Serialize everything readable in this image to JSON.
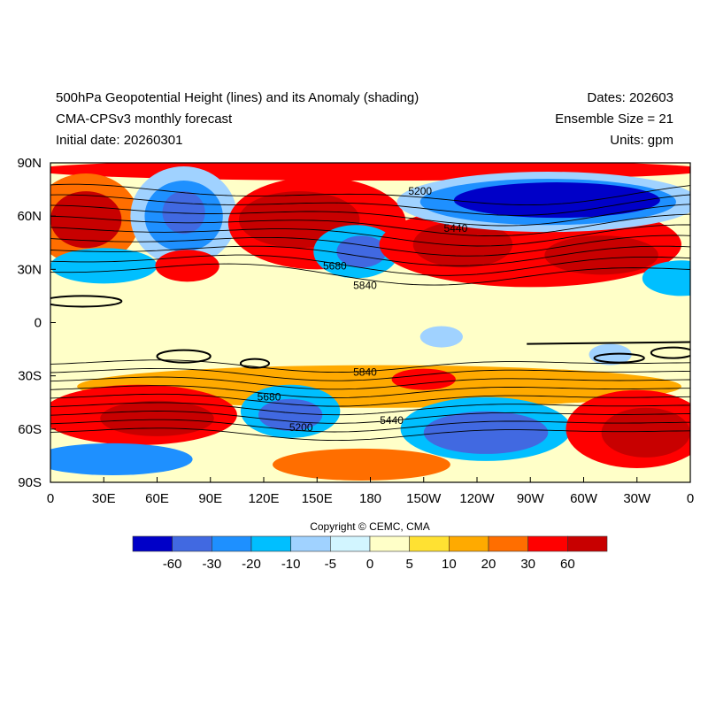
{
  "header": {
    "title_left": [
      "500hPa Geopotential Height (lines) and its Anomaly (shading)",
      "CMA-CPSv3 monthly forecast",
      "Initial date: 20260301"
    ],
    "title_right": [
      "Dates: 202603",
      "Ensemble Size = 21",
      "Units: gpm"
    ]
  },
  "copyright": "Copyright © CEMC, CMA",
  "chart_data": {
    "type": "heatmap",
    "title": "500hPa Geopotential Height (lines) and its Anomaly (shading)",
    "x_tick_labels": [
      "0",
      "30E",
      "60E",
      "90E",
      "120E",
      "150E",
      "180",
      "150W",
      "120W",
      "90W",
      "60W",
      "30W",
      "0"
    ],
    "y_tick_labels": [
      "90N",
      "60N",
      "30N",
      "0",
      "30S",
      "60S",
      "90S"
    ],
    "xlim": [
      0,
      360
    ],
    "ylim": [
      -90,
      90
    ],
    "contour_labels": [
      {
        "text": "5200",
        "lon": 208,
        "lat": 74
      },
      {
        "text": "5440",
        "lon": 228,
        "lat": 53
      },
      {
        "text": "5680",
        "lon": 160,
        "lat": 32
      },
      {
        "text": "5840",
        "lon": 177,
        "lat": 21
      },
      {
        "text": "5840",
        "lon": 177,
        "lat": -28
      },
      {
        "text": "5680",
        "lon": 123,
        "lat": -42
      },
      {
        "text": "5440",
        "lon": 192,
        "lat": -55
      },
      {
        "text": "5200",
        "lon": 141,
        "lat": -59
      }
    ],
    "colorbar": {
      "levels": [
        "-60",
        "-30",
        "-20",
        "-10",
        "-5",
        "0",
        "5",
        "10",
        "20",
        "30",
        "60"
      ],
      "colors": [
        "#0000c8",
        "#4169e1",
        "#1e90ff",
        "#00bfff",
        "#a0d2ff",
        "#d2f5ff",
        "#ffffc8",
        "#ffe132",
        "#ffaa00",
        "#ff6e00",
        "#ff0000",
        "#c80000"
      ]
    },
    "anomaly_regions": [
      {
        "lon": 180,
        "lat": 86,
        "rlon": 190,
        "rlat": 6,
        "level": 10
      },
      {
        "lon": 20,
        "lat": 58,
        "rlon": 30,
        "rlat": 26,
        "level": 9
      },
      {
        "lon": 20,
        "lat": 58,
        "rlon": 20,
        "rlat": 16,
        "level": 11
      },
      {
        "lon": 75,
        "lat": 60,
        "rlon": 30,
        "rlat": 28,
        "level": 4
      },
      {
        "lon": 75,
        "lat": 60,
        "rlon": 22,
        "rlat": 20,
        "level": 2
      },
      {
        "lon": 75,
        "lat": 62,
        "rlon": 12,
        "rlat": 12,
        "level": 1
      },
      {
        "lon": 150,
        "lat": 56,
        "rlon": 50,
        "rlat": 26,
        "level": 10
      },
      {
        "lon": 140,
        "lat": 58,
        "rlon": 34,
        "rlat": 16,
        "level": 11
      },
      {
        "lon": 172,
        "lat": 40,
        "rlon": 24,
        "rlat": 15,
        "level": 3
      },
      {
        "lon": 175,
        "lat": 40,
        "rlon": 14,
        "rlat": 9,
        "level": 1
      },
      {
        "lon": 270,
        "lat": 44,
        "rlon": 85,
        "rlat": 24,
        "level": 10
      },
      {
        "lon": 232,
        "lat": 44,
        "rlon": 28,
        "rlat": 13,
        "level": 11
      },
      {
        "lon": 310,
        "lat": 38,
        "rlon": 32,
        "rlat": 11,
        "level": 11
      },
      {
        "lon": 280,
        "lat": 68,
        "rlon": 85,
        "rlat": 17,
        "level": 4
      },
      {
        "lon": 280,
        "lat": 68,
        "rlon": 72,
        "rlat": 13,
        "level": 2
      },
      {
        "lon": 285,
        "lat": 69,
        "rlon": 58,
        "rlat": 10,
        "level": 0
      },
      {
        "lon": 30,
        "lat": 32,
        "rlon": 30,
        "rlat": 10,
        "level": 3
      },
      {
        "lon": 77,
        "lat": 32,
        "rlon": 18,
        "rlat": 9,
        "level": 10
      },
      {
        "lon": 355,
        "lat": 25,
        "rlon": 22,
        "rlat": 10,
        "level": 3
      },
      {
        "lon": 220,
        "lat": -8,
        "rlon": 12,
        "rlat": 6,
        "level": 4
      },
      {
        "lon": 315,
        "lat": -18,
        "rlon": 12,
        "rlat": 6,
        "level": 4
      },
      {
        "lon": 185,
        "lat": -36,
        "rlon": 170,
        "rlat": 12,
        "level": 8
      },
      {
        "lon": 210,
        "lat": -32,
        "rlon": 18,
        "rlat": 6,
        "level": 10
      },
      {
        "lon": 50,
        "lat": -52,
        "rlon": 55,
        "rlat": 17,
        "level": 10
      },
      {
        "lon": 60,
        "lat": -54,
        "rlon": 32,
        "rlat": 10,
        "level": 11
      },
      {
        "lon": 135,
        "lat": -50,
        "rlon": 28,
        "rlat": 15,
        "level": 3
      },
      {
        "lon": 135,
        "lat": -52,
        "rlon": 18,
        "rlat": 9,
        "level": 1
      },
      {
        "lon": 245,
        "lat": -60,
        "rlon": 48,
        "rlat": 18,
        "level": 3
      },
      {
        "lon": 245,
        "lat": -62,
        "rlon": 35,
        "rlat": 12,
        "level": 1
      },
      {
        "lon": 330,
        "lat": -60,
        "rlon": 40,
        "rlat": 22,
        "level": 10
      },
      {
        "lon": 335,
        "lat": -62,
        "rlon": 25,
        "rlat": 14,
        "level": 11
      },
      {
        "lon": 35,
        "lat": -77,
        "rlon": 45,
        "rlat": 9,
        "level": 2
      },
      {
        "lon": 175,
        "lat": -80,
        "rlon": 50,
        "rlat": 9,
        "level": 9
      }
    ]
  }
}
